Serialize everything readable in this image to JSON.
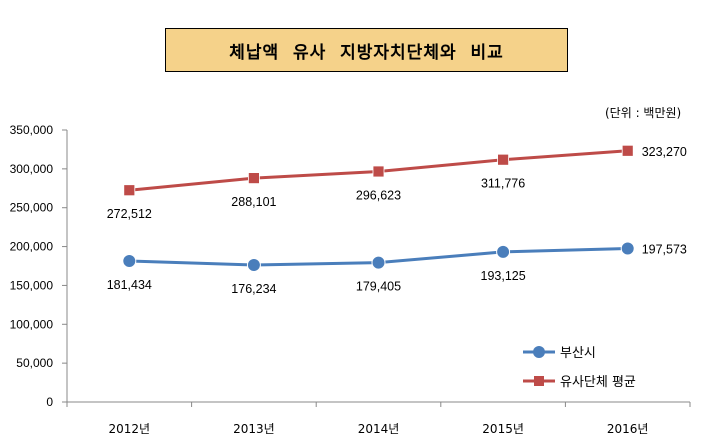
{
  "chart_data": {
    "type": "line",
    "title": "체납액  유사  지방자치단체와  비교",
    "unit_note": "(단위 : 백만원)",
    "categories": [
      "2012년",
      "2013년",
      "2014년",
      "2015년",
      "2016년"
    ],
    "ylim": [
      0,
      350000
    ],
    "yticks": [
      "0",
      "50,000",
      "100,000",
      "150,000",
      "200,000",
      "250,000",
      "300,000",
      "350,000"
    ],
    "ytick_values": [
      0,
      50000,
      100000,
      150000,
      200000,
      250000,
      300000,
      350000
    ],
    "grid": false,
    "legend_position": "bottom-right",
    "series": [
      {
        "name": "부산시",
        "color": "#4a7ebb",
        "marker": "circle",
        "values": [
          181434,
          176234,
          179405,
          193125,
          197573
        ],
        "labels": [
          "181,434",
          "176,234",
          "179,405",
          "193,125",
          "197,573"
        ]
      },
      {
        "name": "유사단체 평균",
        "color": "#be4b48",
        "marker": "square",
        "values": [
          272512,
          288101,
          296623,
          311776,
          323270
        ],
        "labels": [
          "272,512",
          "288,101",
          "296,623",
          "311,776",
          "323,270"
        ]
      }
    ]
  }
}
